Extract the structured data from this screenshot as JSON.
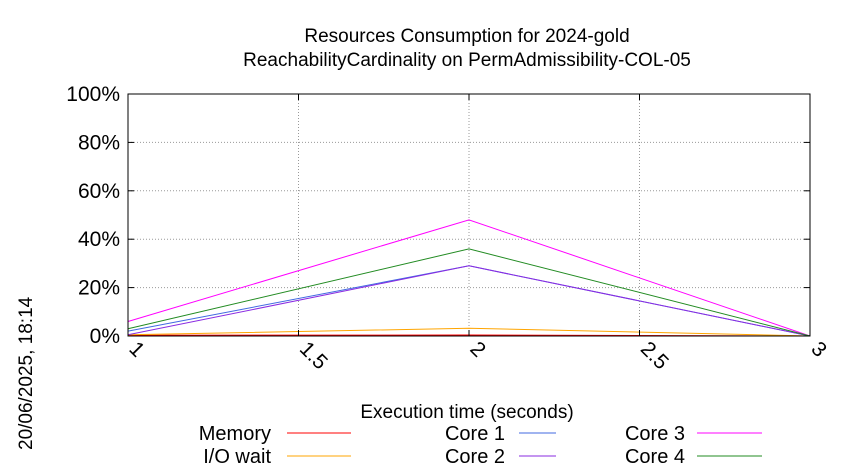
{
  "chart_data": {
    "type": "line",
    "title_line1": "Resources Consumption for 2024-gold",
    "title_line2": "ReachabilityCardinality on PermAdmissibility-COL-05",
    "xlabel": "Execution time (seconds)",
    "ylabel": "",
    "side_label": "20/06/2025, 18:14",
    "xlim": [
      1,
      3
    ],
    "ylim": [
      0,
      100
    ],
    "x_ticks": [
      1,
      1.5,
      2,
      2.5,
      3
    ],
    "x_tick_labels": [
      "1",
      "1.5",
      "2",
      "2.5",
      "3"
    ],
    "y_ticks": [
      0,
      20,
      40,
      60,
      80,
      100
    ],
    "y_tick_labels": [
      "0%",
      "20%",
      "40%",
      "60%",
      "80%",
      "100%"
    ],
    "grid": true,
    "legend_position": "bottom",
    "x": [
      1,
      2,
      3
    ],
    "series": [
      {
        "name": "Memory",
        "color": "#ff0000",
        "values": [
          0.3,
          0.4,
          0
        ]
      },
      {
        "name": "I/O wait",
        "color": "#ffa500",
        "values": [
          0.5,
          3.2,
          0
        ]
      },
      {
        "name": "Core 1",
        "color": "#4169e1",
        "values": [
          2,
          29,
          0
        ]
      },
      {
        "name": "Core 2",
        "color": "#8a2be2",
        "values": [
          0.5,
          29,
          0
        ]
      },
      {
        "name": "Core 3",
        "color": "#ff00ff",
        "values": [
          6,
          48,
          0
        ]
      },
      {
        "name": "Core 4",
        "color": "#228b22",
        "values": [
          3,
          36,
          0
        ]
      }
    ]
  }
}
